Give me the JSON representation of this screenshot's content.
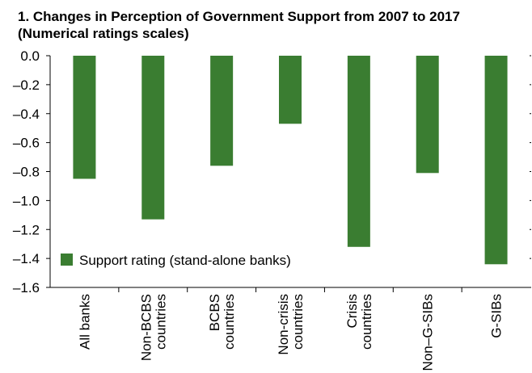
{
  "chart_data": {
    "type": "bar",
    "title": "1. Changes in Perception of Government Support from 2007 to 2017",
    "subtitle": "(Numerical ratings scales)",
    "categories": [
      [
        "All banks"
      ],
      [
        "Non-BCBS",
        "countries"
      ],
      [
        "BCBS",
        "countries"
      ],
      [
        "Non-crisis",
        "countries"
      ],
      [
        "Crisis",
        "countries"
      ],
      [
        "Non–G-SIBs"
      ],
      [
        "G-SIBs"
      ]
    ],
    "series": [
      {
        "name": "Support rating (stand-alone banks)",
        "values": [
          -0.85,
          -1.13,
          -0.76,
          -0.47,
          -1.32,
          -0.81,
          -1.44
        ],
        "color": "#3a7d31"
      }
    ],
    "ylim": [
      -1.6,
      0.0
    ],
    "yticks": [
      "0.0",
      "–0.2",
      "–0.4",
      "–0.6",
      "–0.8",
      "–1.0",
      "–1.2",
      "–1.4",
      "–1.6"
    ],
    "xlabel": "",
    "ylabel": "",
    "grid": false,
    "legend_position": "bottom-left"
  }
}
